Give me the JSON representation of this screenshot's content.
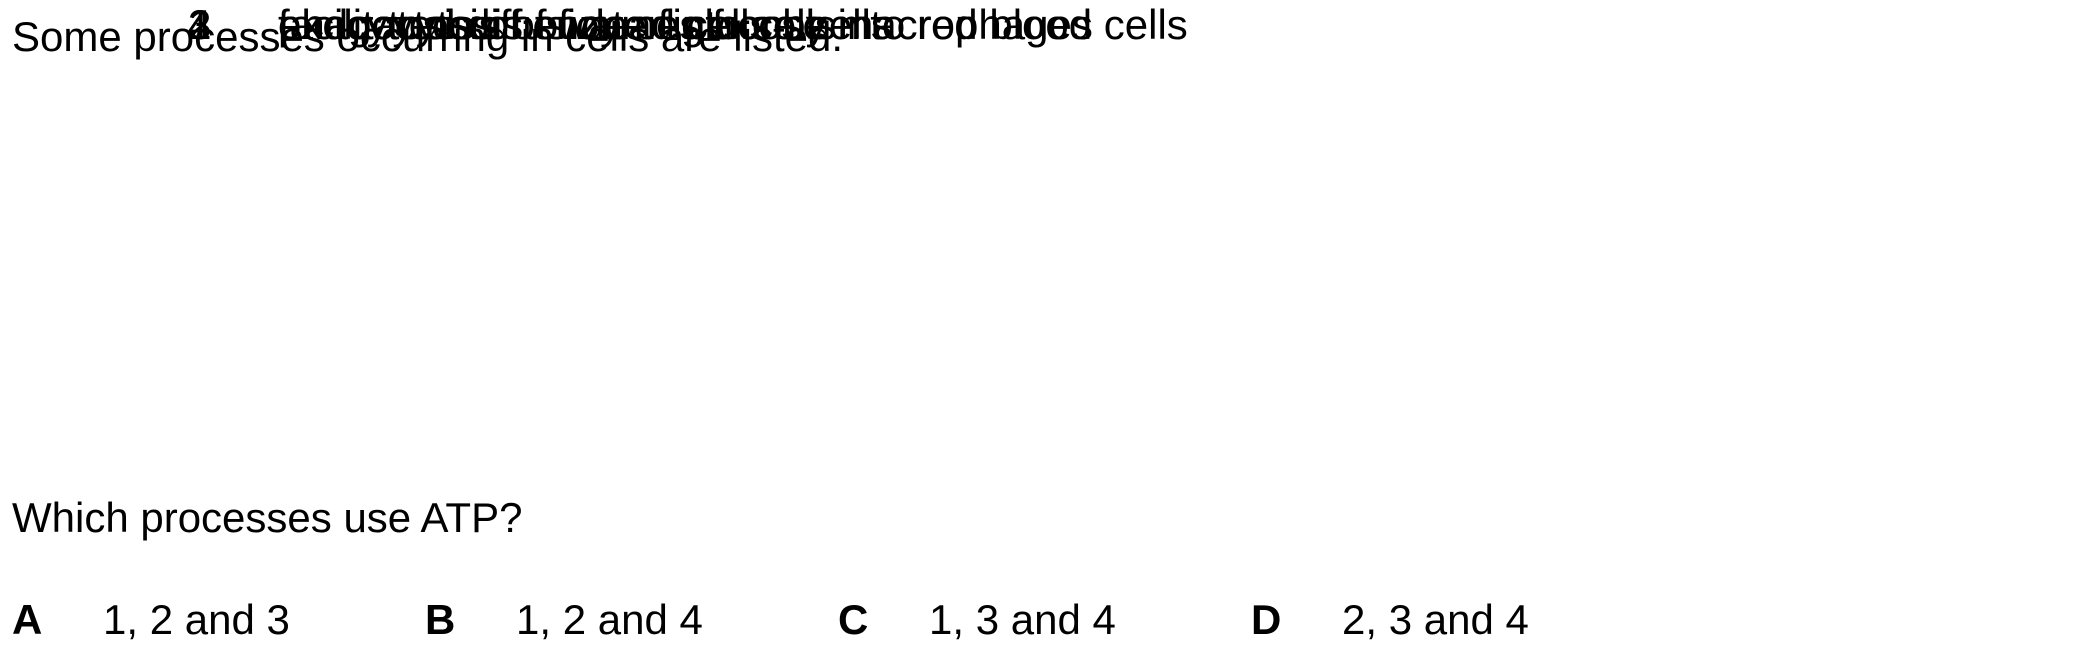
{
  "intro": "Some processes occurring in cells are listed.",
  "processes": [
    {
      "number": "1",
      "text": "endocytosis of water into cells"
    },
    {
      "number": "2",
      "text": "exocytosis of enzymes from cells"
    },
    {
      "number": "3",
      "text": "facilitated diffusion of glucose into red blood cells"
    },
    {
      "number": "4",
      "text": "phagocytosis of dead cells by macrophages"
    }
  ],
  "question": "Which processes use ATP?",
  "options": [
    {
      "letter": "A",
      "text": "1, 2 and 3"
    },
    {
      "letter": "B",
      "text": "1, 2 and 4"
    },
    {
      "letter": "C",
      "text": "1, 3 and 4"
    },
    {
      "letter": "D",
      "text": "2, 3 and 4"
    }
  ]
}
